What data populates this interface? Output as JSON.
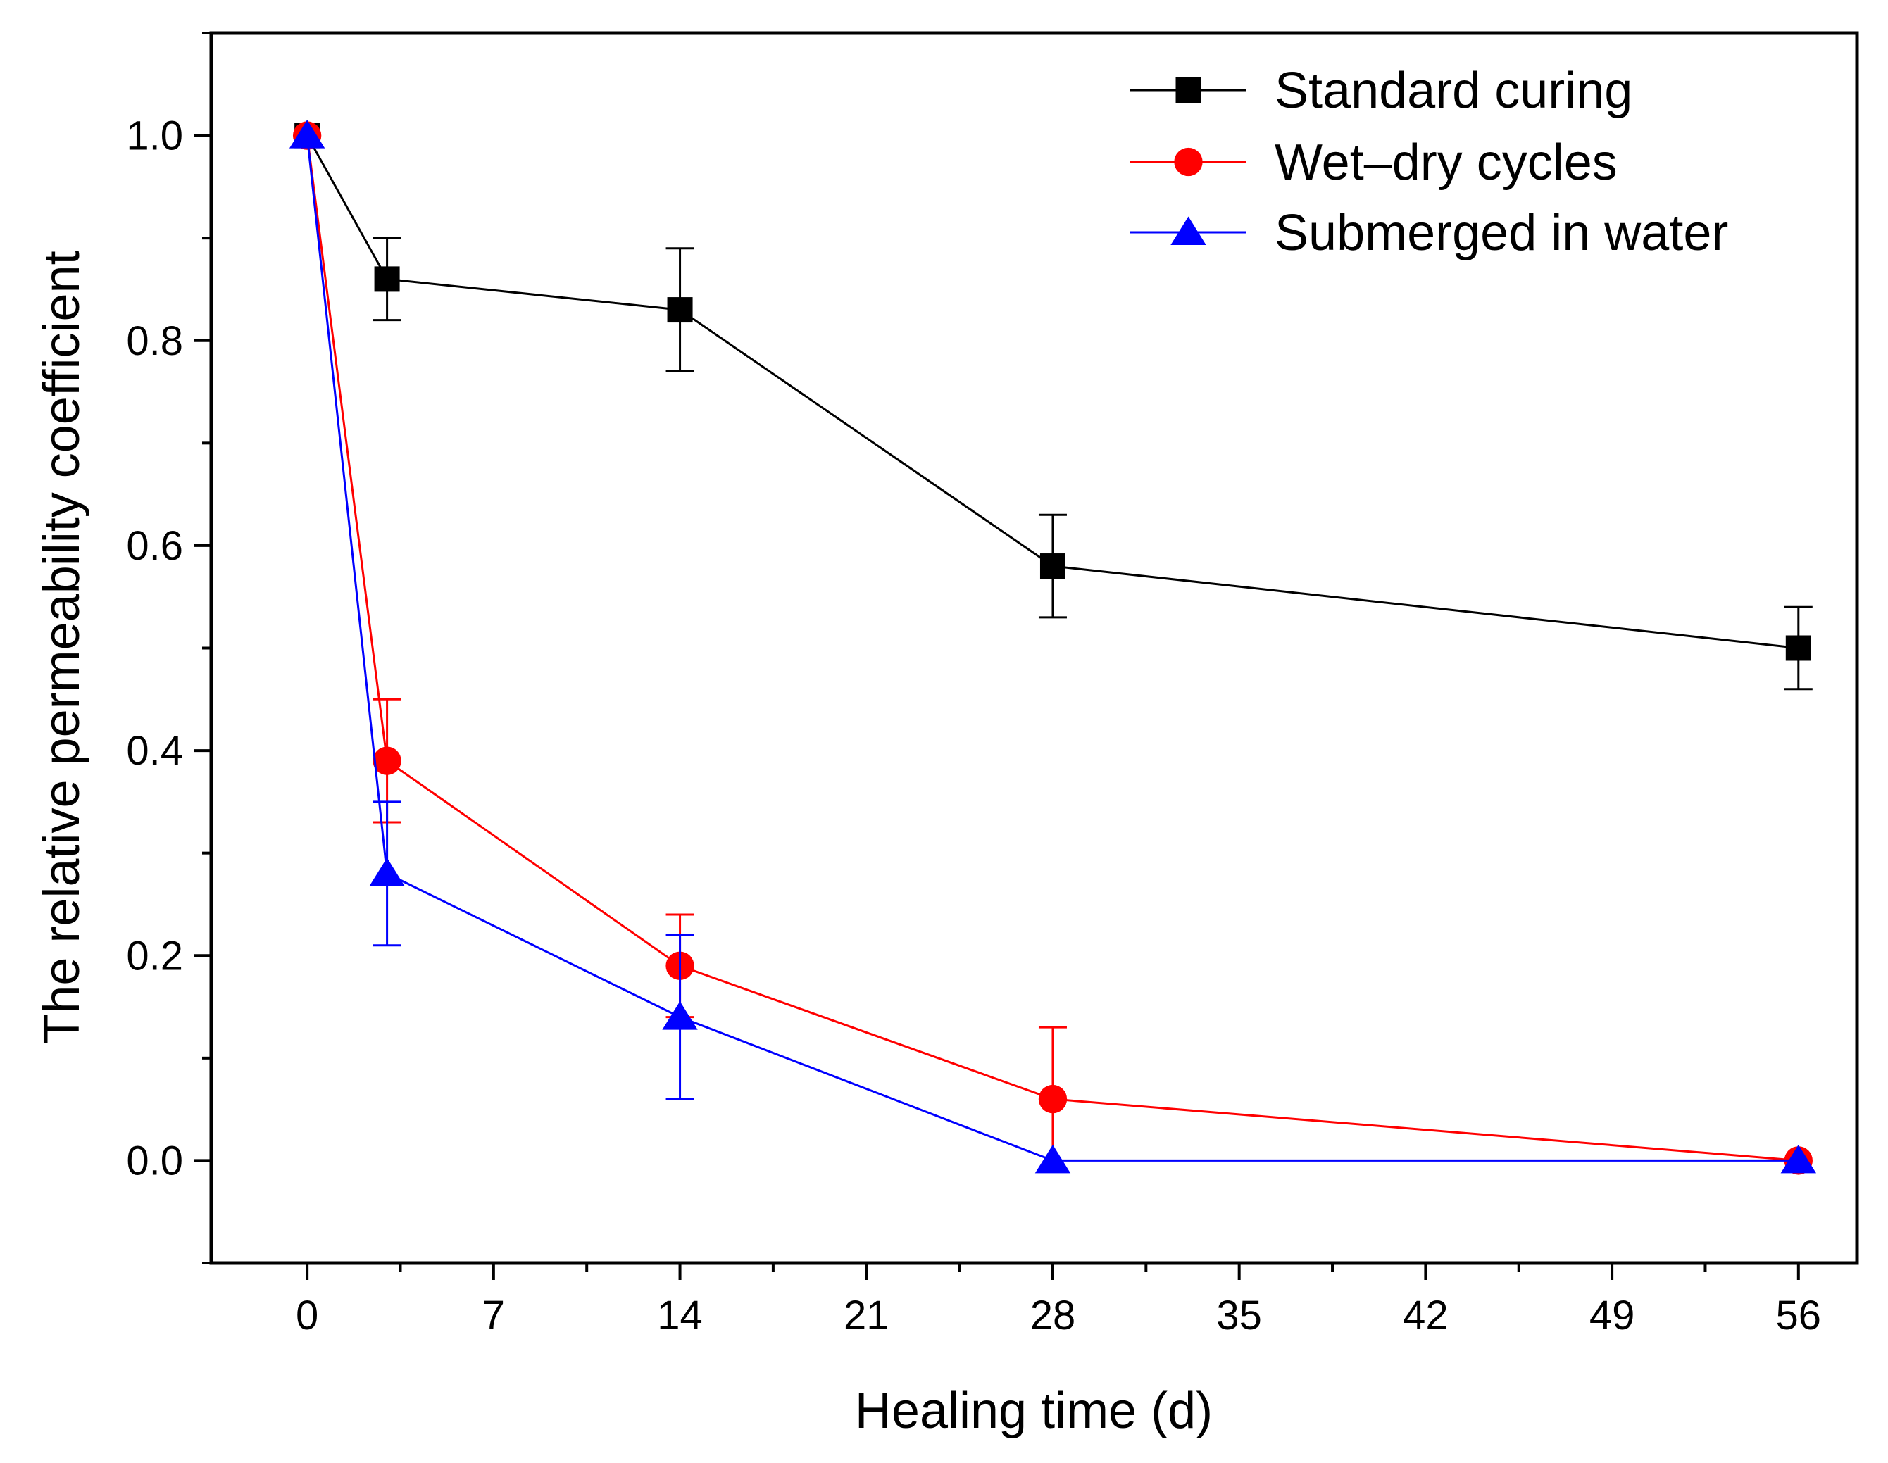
{
  "chart_data": {
    "type": "line",
    "title": "",
    "xlabel": "Healing time (d)",
    "ylabel": "The relative permeability coefficient",
    "xlim": [
      -3.6,
      58.2
    ],
    "ylim": [
      -0.1,
      1.1
    ],
    "x_ticks": [
      0,
      7,
      14,
      21,
      28,
      35,
      42,
      49,
      56
    ],
    "x_tick_labels": [
      "0",
      "7",
      "14",
      "21",
      "28",
      "35",
      "42",
      "49",
      "56"
    ],
    "y_ticks": [
      0.0,
      0.2,
      0.4,
      0.6,
      0.8,
      1.0
    ],
    "y_tick_labels": [
      "0.0",
      "0.2",
      "0.4",
      "0.6",
      "0.8",
      "1.0"
    ],
    "grid": false,
    "legend_position": "top-right",
    "series": [
      {
        "name": "Standard curing",
        "color": "#000000",
        "marker": "square",
        "x": [
          0,
          3,
          14,
          28,
          56
        ],
        "y": [
          1.0,
          0.86,
          0.83,
          0.58,
          0.5
        ],
        "error": [
          0.0,
          0.04,
          0.06,
          0.05,
          0.04
        ]
      },
      {
        "name": "Wet–dry cycles",
        "color": "#ff0000",
        "marker": "circle",
        "x": [
          0,
          3,
          14,
          28,
          56
        ],
        "y": [
          1.0,
          0.39,
          0.19,
          0.06,
          0.0
        ],
        "error": [
          0.0,
          0.06,
          0.05,
          0.07,
          0.0
        ]
      },
      {
        "name": "Submerged in water",
        "color": "#0000ff",
        "marker": "triangle",
        "x": [
          0,
          3,
          14,
          28,
          56
        ],
        "y": [
          1.0,
          0.28,
          0.14,
          0.0,
          0.0
        ],
        "error": [
          0.0,
          0.07,
          0.08,
          0.0,
          0.0
        ]
      }
    ]
  }
}
